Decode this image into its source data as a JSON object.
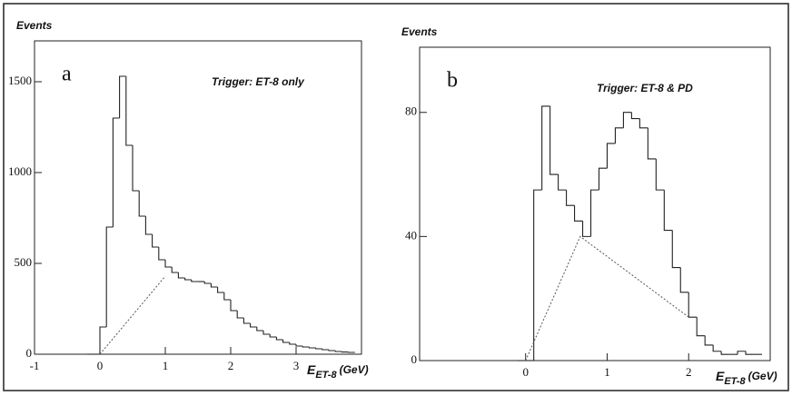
{
  "chart_data": [
    {
      "type": "histogram",
      "y_label": "Events",
      "panel_label": "a",
      "annotation": "Trigger: ET-8 only",
      "x_label": "E",
      "x_label_sub": "ET-8",
      "x_unit": "(GeV)",
      "bins": [
        -0.2,
        -0.1,
        0.0,
        0.1,
        0.2,
        0.3,
        0.4,
        0.5,
        0.6,
        0.7,
        0.8,
        0.9,
        1.0,
        1.1,
        1.2,
        1.3,
        1.4,
        1.5,
        1.6,
        1.7,
        1.8,
        1.9,
        2.0,
        2.1,
        2.2,
        2.3,
        2.4,
        2.5,
        2.6,
        2.7,
        2.8,
        2.9,
        3.0,
        3.1,
        3.2,
        3.3,
        3.4,
        3.5,
        3.6,
        3.7,
        3.8,
        3.9
      ],
      "values": [
        0,
        0,
        150,
        700,
        1300,
        1530,
        1150,
        900,
        760,
        660,
        590,
        520,
        480,
        450,
        420,
        410,
        400,
        400,
        390,
        370,
        340,
        300,
        240,
        200,
        170,
        150,
        130,
        110,
        95,
        80,
        65,
        55,
        45,
        40,
        35,
        30,
        25,
        20,
        15,
        12,
        10
      ],
      "background": {
        "x": [
          0,
          1.0
        ],
        "y": [
          0,
          430
        ]
      },
      "xlim": [
        -1,
        4
      ],
      "ylim": [
        0,
        1725
      ],
      "xticks": [
        -1,
        0,
        1,
        2,
        3
      ],
      "yticks": [
        0,
        500,
        1000,
        1500
      ]
    },
    {
      "type": "histogram",
      "y_label": "Events",
      "panel_label": "b",
      "annotation": "Trigger: ET-8 & PD",
      "x_label": "E",
      "x_label_sub": "ET-8",
      "x_unit": "(GeV)",
      "bins": [
        -0.1,
        0.0,
        0.1,
        0.2,
        0.3,
        0.4,
        0.5,
        0.6,
        0.7,
        0.8,
        0.9,
        1.0,
        1.1,
        1.2,
        1.3,
        1.4,
        1.5,
        1.6,
        1.7,
        1.8,
        1.9,
        2.0,
        2.1,
        2.2,
        2.3,
        2.4,
        2.5,
        2.6,
        2.7,
        2.8,
        2.9
      ],
      "values": [
        0,
        0,
        55,
        82,
        60,
        55,
        50,
        45,
        40,
        55,
        62,
        70,
        75,
        80,
        78,
        75,
        65,
        55,
        42,
        30,
        22,
        14,
        8,
        5,
        3,
        2,
        2,
        3,
        2,
        2
      ],
      "background": {
        "x": [
          0,
          0.67,
          2.0
        ],
        "y": [
          0,
          40,
          14
        ]
      },
      "xlim": [
        -1.3,
        3
      ],
      "ylim": [
        0,
        101
      ],
      "xticks": [
        0,
        1,
        2
      ],
      "yticks": [
        0,
        40,
        80
      ]
    }
  ]
}
